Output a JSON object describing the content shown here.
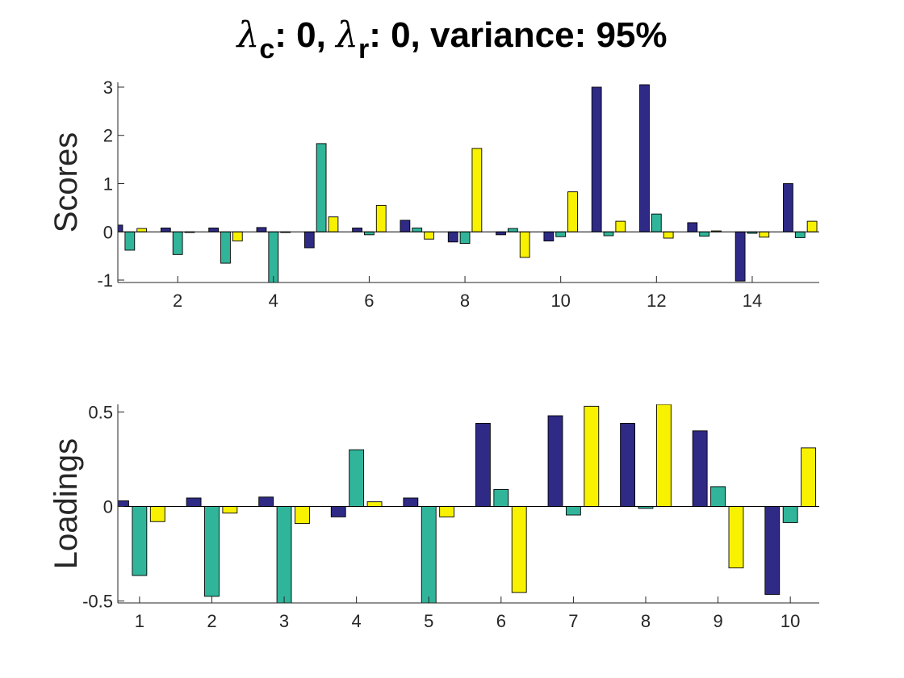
{
  "title": {
    "lambda_symbol": "λ",
    "c_sub": "c",
    "part1": ": 0, ",
    "r_sub": "r",
    "part2": ": 0, variance: 95%"
  },
  "colors": [
    "#2e2a85",
    "#31b59a",
    "#f8f200"
  ],
  "chart_data": [
    {
      "type": "bar",
      "ylabel": "Scores",
      "xlim": [
        0.75,
        15.4
      ],
      "ylim": [
        -1.05,
        3.1
      ],
      "xticks": [
        2,
        4,
        6,
        8,
        10,
        12,
        14
      ],
      "yticks": [
        -1,
        0,
        1,
        2,
        3
      ],
      "categories": [
        1,
        2,
        3,
        4,
        5,
        6,
        7,
        8,
        9,
        10,
        11,
        12,
        13,
        14,
        15
      ],
      "series": [
        {
          "values": [
            0.14,
            0.08,
            0.08,
            0.09,
            -0.33,
            0.08,
            0.24,
            -0.21,
            -0.06,
            -0.19,
            3.0,
            3.05,
            0.19,
            -1.02,
            1.0
          ]
        },
        {
          "values": [
            -0.38,
            -0.47,
            -0.65,
            -1.05,
            1.83,
            -0.06,
            0.08,
            -0.24,
            0.07,
            -0.1,
            -0.08,
            0.37,
            -0.09,
            -0.03,
            -0.12
          ]
        },
        {
          "values": [
            0.07,
            0.0,
            -0.19,
            0.0,
            0.31,
            0.55,
            -0.15,
            1.73,
            -0.53,
            0.83,
            0.22,
            -0.13,
            0.02,
            -0.11,
            0.22
          ]
        }
      ]
    },
    {
      "type": "bar",
      "ylabel": "Loadings",
      "xlim": [
        0.7,
        10.4
      ],
      "ylim": [
        -0.51,
        0.54
      ],
      "xticks": [
        1,
        2,
        3,
        4,
        5,
        6,
        7,
        8,
        9,
        10
      ],
      "yticks": [
        -0.5,
        0,
        0.5
      ],
      "categories": [
        1,
        2,
        3,
        4,
        5,
        6,
        7,
        8,
        9,
        10
      ],
      "series": [
        {
          "values": [
            0.03,
            0.045,
            0.05,
            -0.055,
            0.045,
            0.44,
            0.48,
            0.44,
            0.4,
            -0.465
          ]
        },
        {
          "values": [
            -0.365,
            -0.475,
            -0.51,
            0.3,
            -0.51,
            0.09,
            -0.045,
            -0.01,
            0.105,
            -0.085
          ]
        },
        {
          "values": [
            -0.08,
            -0.035,
            -0.09,
            0.025,
            -0.055,
            -0.455,
            0.53,
            0.54,
            -0.325,
            0.31
          ]
        }
      ]
    }
  ]
}
